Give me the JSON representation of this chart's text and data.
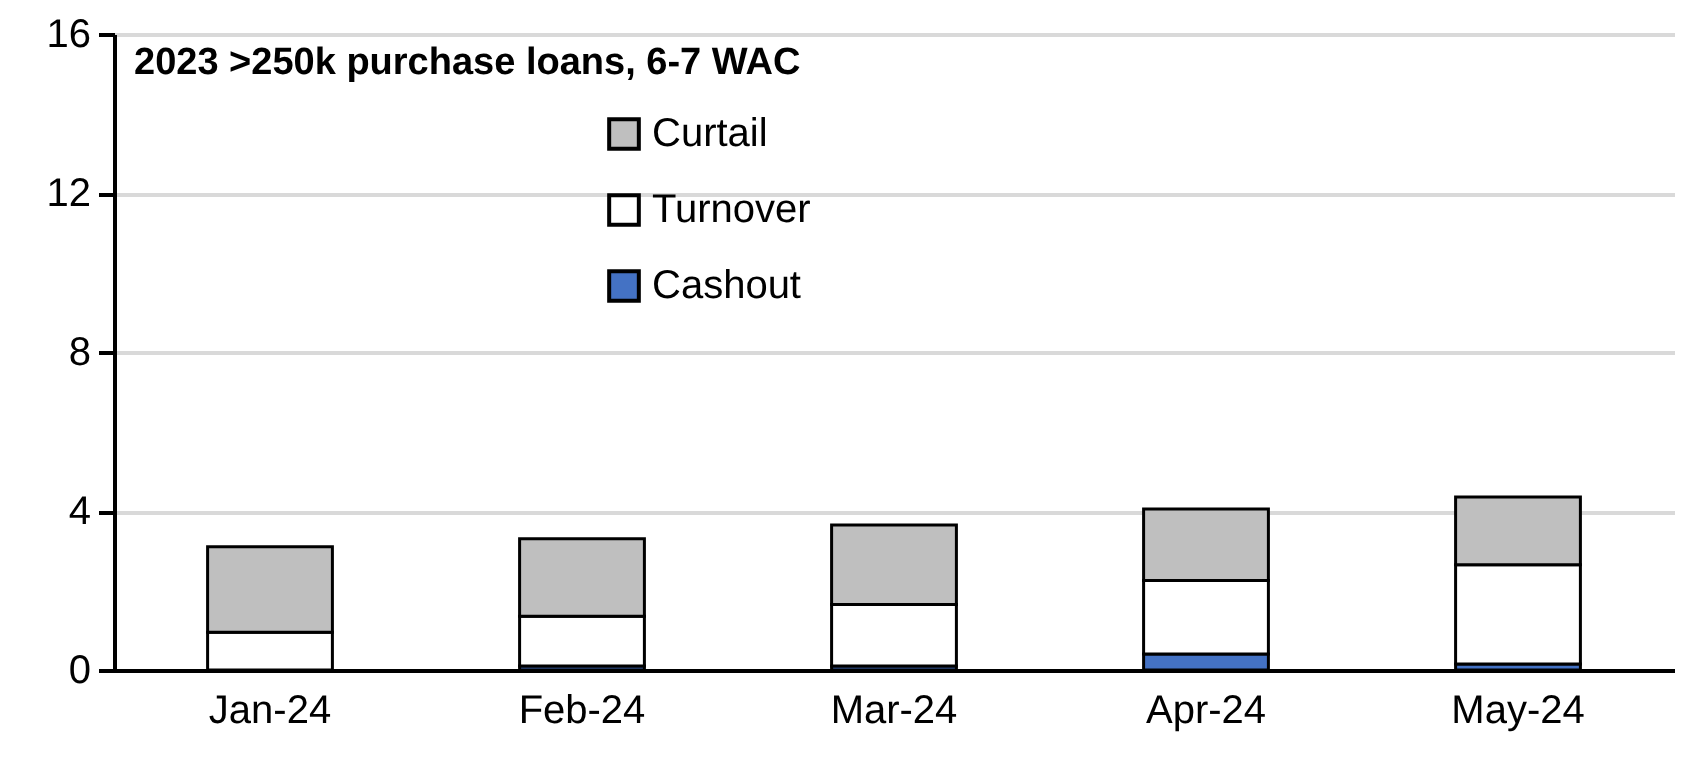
{
  "chart_data": {
    "type": "bar",
    "stacked": true,
    "title": "2023 >250k purchase loans, 6-7 WAC",
    "categories": [
      "Jan-24",
      "Feb-24",
      "Mar-24",
      "Apr-24",
      "May-24"
    ],
    "series": [
      {
        "name": "Cashout",
        "color": "#4472c4",
        "values": [
          null,
          0.1,
          0.1,
          0.4,
          0.15
        ]
      },
      {
        "name": "Turnover",
        "color": "#ffffff",
        "values": [
          0.95,
          1.25,
          1.55,
          1.85,
          2.5
        ]
      },
      {
        "name": "Curtail",
        "color": "#bfbfbf",
        "values": [
          2.15,
          1.95,
          2.0,
          1.8,
          1.7
        ]
      }
    ],
    "ylim": [
      0,
      16
    ],
    "yticks": [
      0,
      4,
      8,
      12,
      16
    ],
    "grid": "y",
    "legend": "top"
  }
}
